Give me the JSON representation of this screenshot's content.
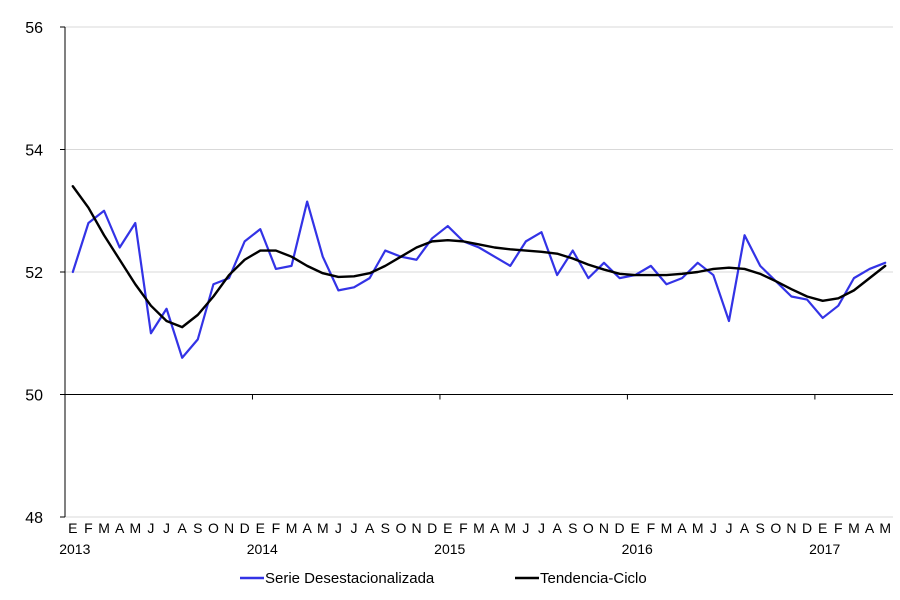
{
  "chart_data": {
    "type": "line",
    "title": "",
    "xlabel": "",
    "ylabel": "",
    "ylim": [
      48,
      56
    ],
    "yticks": [
      48,
      50,
      52,
      54,
      56
    ],
    "grid": true,
    "legend": "bottom",
    "month_labels": [
      "E",
      "F",
      "M",
      "A",
      "M",
      "J",
      "J",
      "A",
      "S",
      "O",
      "N",
      "D"
    ],
    "year_labels": [
      "2013",
      "2014",
      "2015",
      "2016",
      "2017"
    ],
    "x": [
      "2013-01",
      "2013-02",
      "2013-03",
      "2013-04",
      "2013-05",
      "2013-06",
      "2013-07",
      "2013-08",
      "2013-09",
      "2013-10",
      "2013-11",
      "2013-12",
      "2014-01",
      "2014-02",
      "2014-03",
      "2014-04",
      "2014-05",
      "2014-06",
      "2014-07",
      "2014-08",
      "2014-09",
      "2014-10",
      "2014-11",
      "2014-12",
      "2015-01",
      "2015-02",
      "2015-03",
      "2015-04",
      "2015-05",
      "2015-06",
      "2015-07",
      "2015-08",
      "2015-09",
      "2015-10",
      "2015-11",
      "2015-12",
      "2016-01",
      "2016-02",
      "2016-03",
      "2016-04",
      "2016-05",
      "2016-06",
      "2016-07",
      "2016-08",
      "2016-09",
      "2016-10",
      "2016-11",
      "2016-12",
      "2017-01",
      "2017-02",
      "2017-03",
      "2017-04",
      "2017-05"
    ],
    "series": [
      {
        "name": "Serie Desestacionalizada",
        "color": "#3333e6",
        "values": [
          52.0,
          52.8,
          53.0,
          52.4,
          52.8,
          51.0,
          51.4,
          50.6,
          50.9,
          51.8,
          51.9,
          52.5,
          52.7,
          52.05,
          52.1,
          53.15,
          52.25,
          51.7,
          51.75,
          51.9,
          52.35,
          52.25,
          52.2,
          52.55,
          52.75,
          52.5,
          52.4,
          52.25,
          52.1,
          52.5,
          52.65,
          51.95,
          52.35,
          51.9,
          52.15,
          51.9,
          51.95,
          52.1,
          51.8,
          51.9,
          52.15,
          51.95,
          51.2,
          52.6,
          52.1,
          51.85,
          51.6,
          51.55,
          51.25,
          51.45,
          51.9,
          52.05,
          52.15
        ]
      },
      {
        "name": "Tendencia-Ciclo",
        "color": "#000000",
        "values": [
          53.4,
          53.05,
          52.6,
          52.2,
          51.8,
          51.45,
          51.2,
          51.1,
          51.3,
          51.6,
          51.95,
          52.2,
          52.35,
          52.35,
          52.25,
          52.1,
          51.98,
          51.92,
          51.93,
          51.98,
          52.1,
          52.25,
          52.4,
          52.5,
          52.52,
          52.5,
          52.45,
          52.4,
          52.37,
          52.35,
          52.33,
          52.3,
          52.22,
          52.12,
          52.04,
          51.97,
          51.95,
          51.95,
          51.95,
          51.97,
          52.0,
          52.05,
          52.07,
          52.05,
          51.97,
          51.85,
          51.72,
          51.6,
          51.53,
          51.57,
          51.7,
          51.9,
          52.1
        ]
      }
    ]
  }
}
